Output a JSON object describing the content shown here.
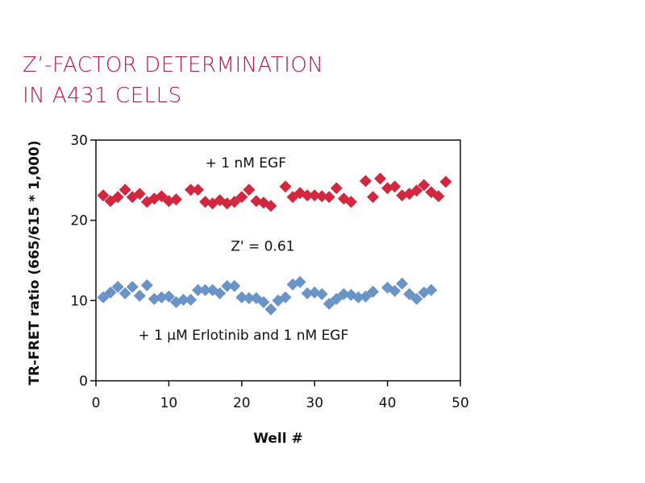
{
  "colors": {
    "title": "#b5174b",
    "egf": "#d2283f",
    "erlotinib": "#6a93c6",
    "axis": "#111111"
  },
  "chart_data": {
    "type": "scatter",
    "title_lines": [
      "Z’-FACTOR DETERMINATION",
      "IN A431 CELLS"
    ],
    "xlabel": "Well #",
    "ylabel": "TR-FRET ratio (665/615 * 1,000)",
    "xlim": [
      0,
      50
    ],
    "ylim": [
      0,
      30
    ],
    "xticks": [
      0,
      10,
      20,
      30,
      40,
      50
    ],
    "yticks": [
      0,
      10,
      20,
      30
    ],
    "grid": false,
    "marker": "diamond",
    "series": [
      {
        "name": "+ 1 nM  EGF",
        "x": [
          1,
          2,
          3,
          4,
          5,
          6,
          7,
          8,
          9,
          10,
          11,
          13,
          14,
          15,
          16,
          17,
          18,
          19,
          20,
          21,
          22,
          23,
          24,
          26,
          27,
          28,
          29,
          30,
          31,
          32,
          33,
          34,
          35,
          37,
          38,
          39,
          40,
          41,
          42,
          43,
          44,
          45,
          46,
          47,
          48
        ],
        "y": [
          23.1,
          22.4,
          22.9,
          23.8,
          22.9,
          23.3,
          22.3,
          22.7,
          23.0,
          22.4,
          22.6,
          23.8,
          23.8,
          22.3,
          22.1,
          22.5,
          22.1,
          22.3,
          22.9,
          23.8,
          22.4,
          22.2,
          21.8,
          24.2,
          22.9,
          23.4,
          23.1,
          23.1,
          23.0,
          22.9,
          24.0,
          22.7,
          22.3,
          24.9,
          22.9,
          25.2,
          24.0,
          24.2,
          23.1,
          23.3,
          23.7,
          24.4,
          23.5,
          23.0,
          24.8
        ]
      },
      {
        "name": "+ 1 µM Erlotinib and 1 nM EGF",
        "x": [
          1,
          2,
          3,
          4,
          5,
          6,
          7,
          8,
          9,
          10,
          11,
          12,
          13,
          14,
          15,
          16,
          17,
          18,
          19,
          20,
          21,
          22,
          23,
          24,
          25,
          26,
          27,
          28,
          29,
          30,
          31,
          32,
          33,
          34,
          35,
          36,
          37,
          38,
          40,
          41,
          42,
          43,
          44,
          45,
          46
        ],
        "y": [
          10.4,
          11.0,
          11.7,
          10.9,
          11.7,
          10.6,
          11.9,
          10.2,
          10.4,
          10.5,
          9.8,
          10.1,
          10.1,
          11.3,
          11.3,
          11.3,
          10.9,
          11.8,
          11.8,
          10.4,
          10.3,
          10.3,
          9.8,
          8.9,
          10.0,
          10.4,
          12.0,
          12.3,
          10.9,
          11.0,
          10.8,
          9.6,
          10.2,
          10.8,
          10.7,
          10.4,
          10.5,
          11.1,
          11.6,
          11.2,
          12.1,
          10.8,
          10.2,
          11.0,
          11.3
        ]
      }
    ],
    "annotations": [
      {
        "text": "+ 1 nM  EGF",
        "x": 15,
        "y": 26.6
      },
      {
        "text": "Z' = 0.61",
        "x": 18.5,
        "y": 16.2
      },
      {
        "text": "+ 1 µM Erlotinib and 1 nM EGF",
        "x": 5.8,
        "y": 5.1
      }
    ]
  }
}
